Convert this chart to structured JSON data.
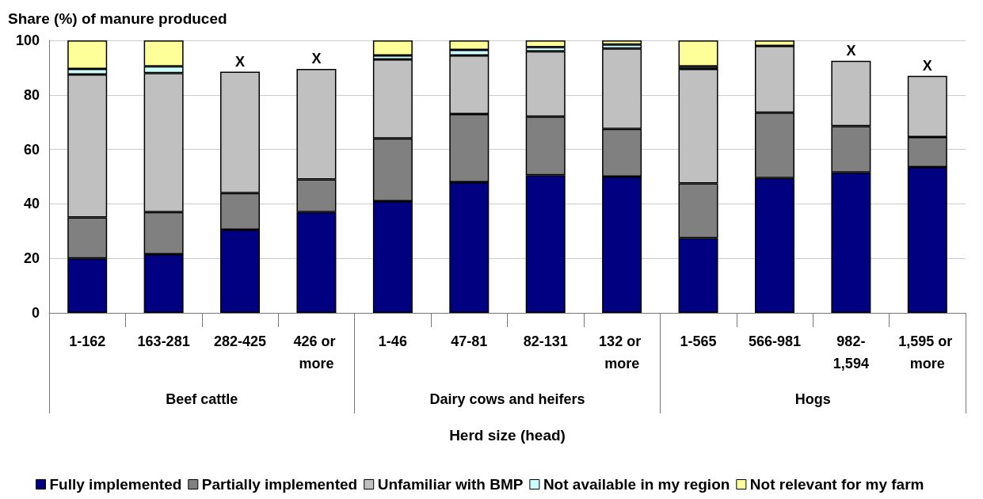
{
  "chart_data": {
    "type": "bar",
    "stacked": true,
    "ylabel": "Share (%) of manure produced",
    "xlabel": "Herd size (head)",
    "categories": [
      "1-162",
      "163-281",
      "282-425",
      "426 or more",
      "1-46",
      "47-81",
      "82-131",
      "132 or more",
      "1-565",
      "566-981",
      "982-1,594",
      "1,595 or more"
    ],
    "series": [
      {
        "name": "Fully implemented",
        "color": "#000080",
        "values": [
          20,
          21.5,
          30.5,
          37,
          41,
          48,
          50.5,
          50,
          27.5,
          49.5,
          51.5,
          53.5
        ]
      },
      {
        "name": "Partially implemented",
        "color": "#808080",
        "values": [
          15,
          15.5,
          13.5,
          12,
          23,
          25,
          21.5,
          17.5,
          20,
          24,
          17,
          11
        ]
      },
      {
        "name": "Unfamiliar with BMP",
        "color": "#c0c0c0",
        "values": [
          52.5,
          51,
          44.5,
          40.5,
          29,
          21.5,
          24,
          29.5,
          42,
          24.5,
          24,
          22.5
        ]
      },
      {
        "name": "Not available in my region",
        "color": "#ccffff",
        "values": [
          2,
          2.5,
          null,
          null,
          1.5,
          2,
          1.5,
          1.5,
          1,
          null,
          null,
          null
        ]
      },
      {
        "name": "Not relevant for my farm",
        "color": "#ffff99",
        "values": [
          10.5,
          9.5,
          null,
          null,
          5.5,
          3.5,
          2.5,
          1.5,
          9.5,
          2,
          null,
          null
        ]
      }
    ],
    "annotations": [
      "Beef cattle",
      "Dairy cows and heifers",
      "Hogs",
      {
        "text": "X",
        "x": "282-425",
        "y": 88.5
      },
      {
        "text": "X",
        "x": "426 or more",
        "y": 89.5
      },
      {
        "text": "X",
        "x": "982-1,594",
        "y": 92.5
      },
      {
        "text": "X",
        "x": "1,595 or more",
        "y": 87
      }
    ],
    "ylim": [
      0,
      100
    ],
    "yticks": [
      0,
      20,
      40,
      60,
      80,
      100
    ],
    "grid": "y",
    "legend": "bottom"
  }
}
